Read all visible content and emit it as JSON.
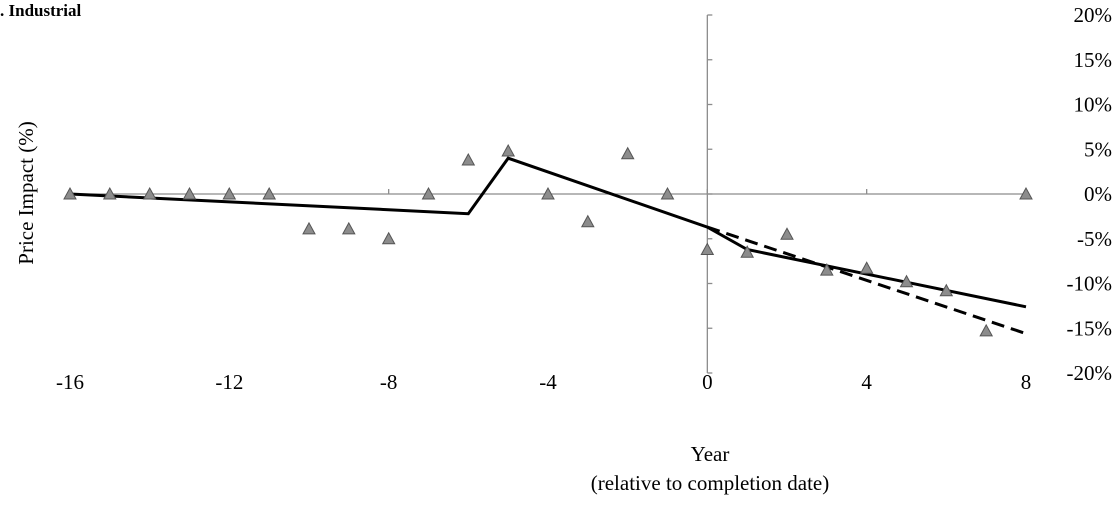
{
  "chart_data": {
    "type": "scatter",
    "title": ". Industrial",
    "xlabel": "Year",
    "xlabel_sub": "(relative to completion date)",
    "ylabel": "Price Impact (%)",
    "xlim": [
      -16,
      8
    ],
    "ylim": [
      -20,
      20
    ],
    "x_ticks": [
      -16,
      -12,
      -8,
      -4,
      0,
      4,
      8
    ],
    "x_tick_labels": [
      "-16",
      "-12",
      "-8",
      "-4",
      "0",
      "4",
      "8"
    ],
    "y_ticks": [
      20,
      15,
      10,
      5,
      0,
      -5,
      -10,
      -15,
      -20
    ],
    "y_tick_labels": [
      "20%",
      "15%",
      "10%",
      "5%",
      "0%",
      "-5%",
      "-10%",
      "-15%",
      "-20%"
    ],
    "grid": false,
    "legend": "none",
    "series": [
      {
        "kind": "markers",
        "marker": "triangle",
        "color": "#8c8c8c",
        "points": [
          {
            "x": -16,
            "y": 0
          },
          {
            "x": -15,
            "y": 0
          },
          {
            "x": -14,
            "y": 0
          },
          {
            "x": -13,
            "y": 0
          },
          {
            "x": -12,
            "y": 0
          },
          {
            "x": -11,
            "y": 0
          },
          {
            "x": -10,
            "y": -3.9
          },
          {
            "x": -9,
            "y": -3.9
          },
          {
            "x": -8,
            "y": -5.0
          },
          {
            "x": -7,
            "y": 0
          },
          {
            "x": -6,
            "y": 3.8
          },
          {
            "x": -5,
            "y": 4.8
          },
          {
            "x": -4,
            "y": 0
          },
          {
            "x": -3,
            "y": -3.1
          },
          {
            "x": -2,
            "y": 4.5
          },
          {
            "x": -1,
            "y": 0
          },
          {
            "x": 0,
            "y": -6.2
          },
          {
            "x": 1,
            "y": -6.5
          },
          {
            "x": 2,
            "y": -4.5
          },
          {
            "x": 3,
            "y": -8.5
          },
          {
            "x": 4,
            "y": -8.3
          },
          {
            "x": 5,
            "y": -9.8
          },
          {
            "x": 6,
            "y": -10.8
          },
          {
            "x": 7,
            "y": -15.3
          },
          {
            "x": 8,
            "y": 0
          }
        ]
      },
      {
        "kind": "line",
        "style": "solid",
        "color": "#000000",
        "points": [
          {
            "x": -16,
            "y": 0
          },
          {
            "x": -6,
            "y": -2.2
          },
          {
            "x": -5,
            "y": 4.0
          },
          {
            "x": 0,
            "y": -3.7
          },
          {
            "x": 1,
            "y": -6.2
          },
          {
            "x": 8,
            "y": -12.6
          }
        ]
      },
      {
        "kind": "line",
        "style": "dashed",
        "color": "#000000",
        "points": [
          {
            "x": 0,
            "y": -3.7
          },
          {
            "x": 8,
            "y": -15.6
          }
        ]
      }
    ]
  }
}
